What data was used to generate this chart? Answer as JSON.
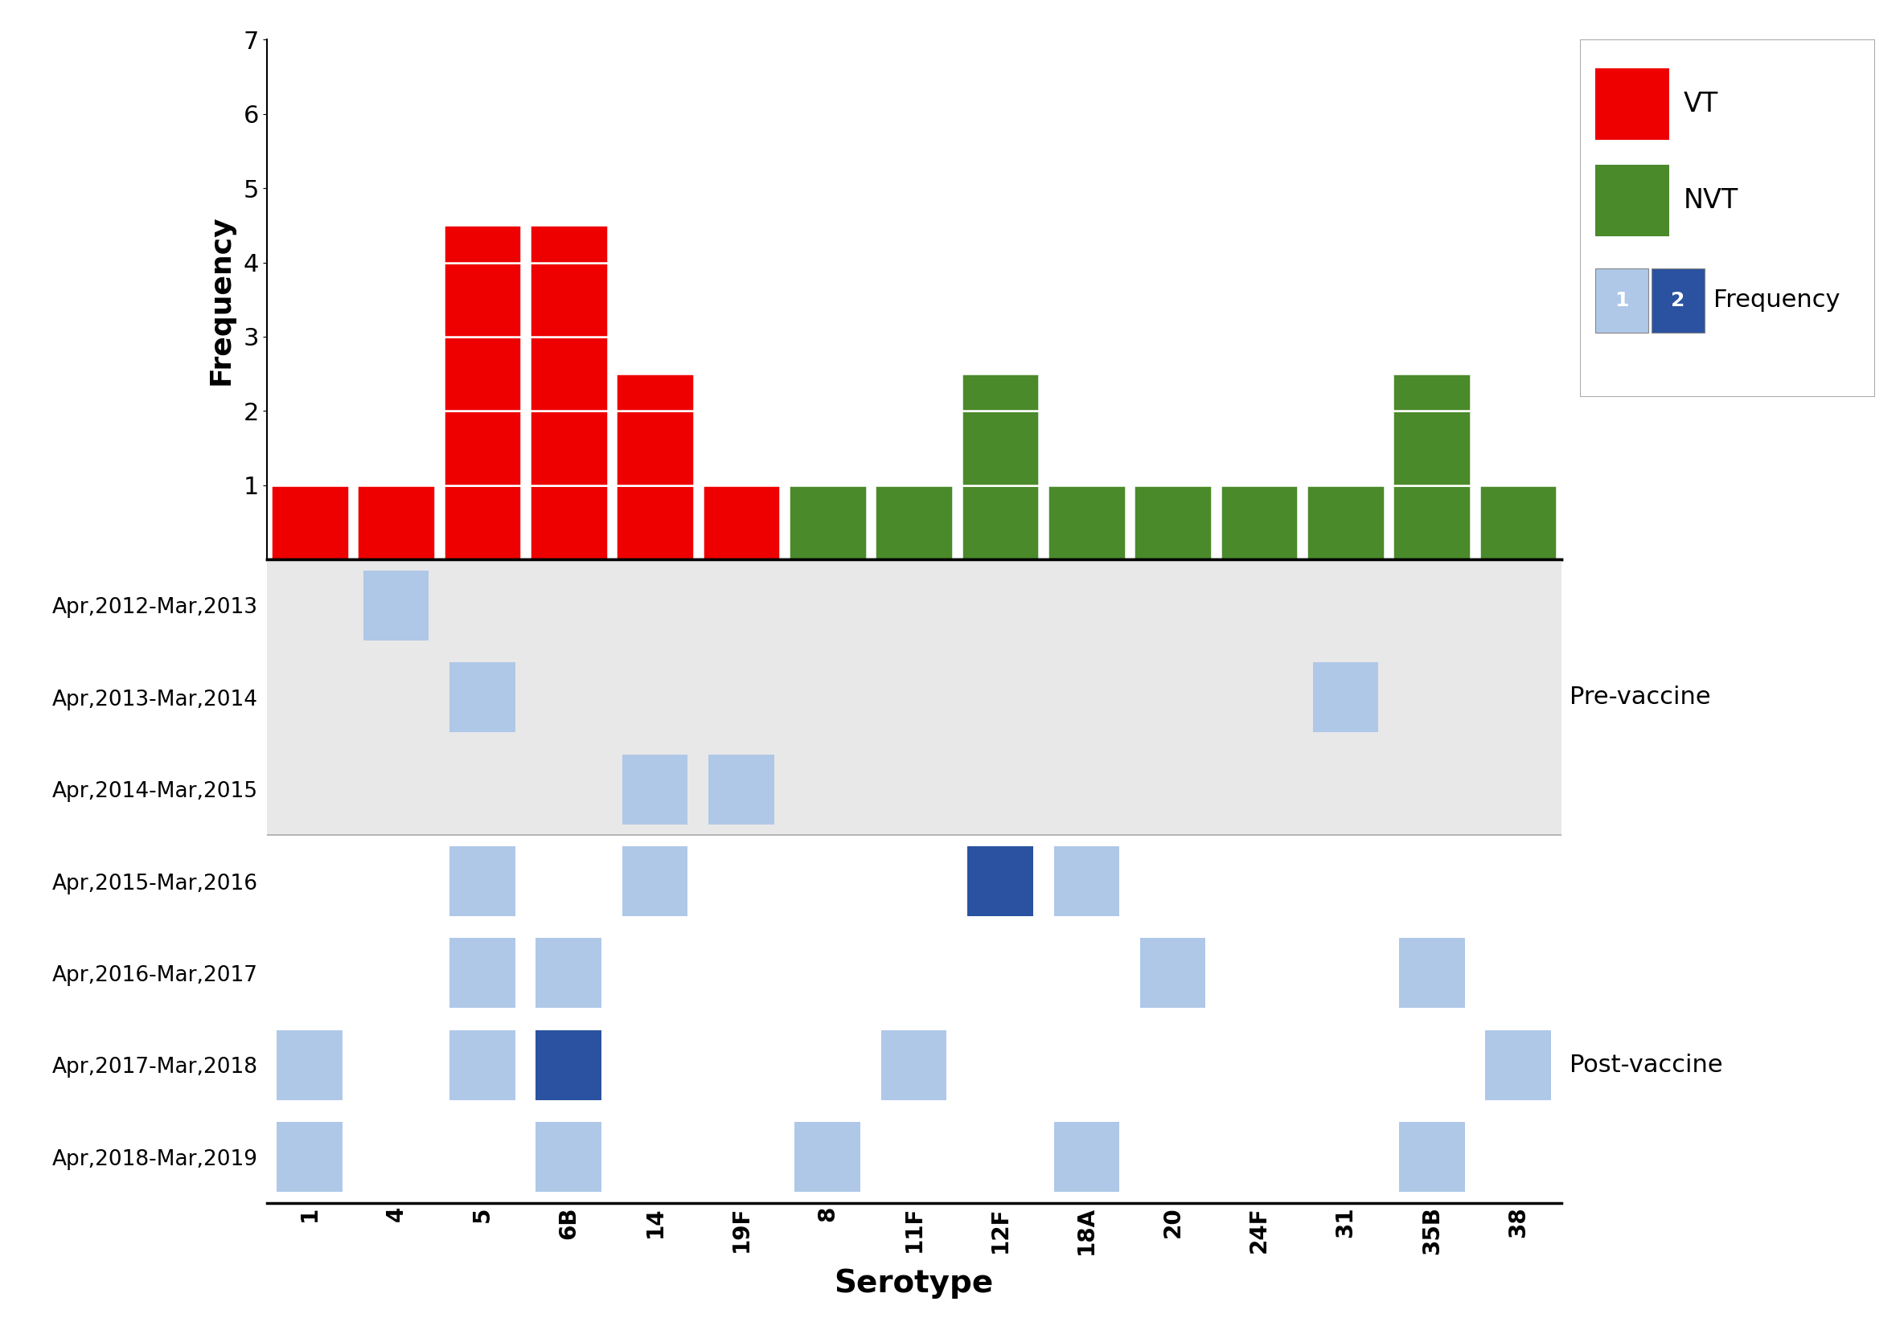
{
  "serotypes": [
    "1",
    "4",
    "5",
    "6B",
    "14",
    "19F",
    "8",
    "11F",
    "12F",
    "18A",
    "20",
    "24F",
    "31",
    "35B",
    "38"
  ],
  "serotype_types": [
    "VT",
    "VT",
    "VT",
    "VT",
    "VT",
    "VT",
    "NVT",
    "NVT",
    "NVT",
    "NVT",
    "NVT",
    "NVT",
    "NVT",
    "NVT",
    "NVT"
  ],
  "bar_heights": [
    1,
    1,
    4.5,
    4.5,
    2.5,
    1,
    1,
    1,
    2.5,
    1,
    1,
    1,
    1,
    2.5,
    1
  ],
  "vt_color": "#EE0000",
  "nvt_color": "#4A8A2A",
  "years": [
    "Apr,2012-Mar,2013",
    "Apr,2013-Mar,2014",
    "Apr,2014-Mar,2015",
    "Apr,2015-Mar,2016",
    "Apr,2016-Mar,2017",
    "Apr,2017-Mar,2018",
    "Apr,2018-Mar,2019"
  ],
  "heatmap_values": [
    [
      0,
      1,
      0,
      0,
      0,
      0,
      0,
      0,
      0,
      0,
      0,
      0,
      0,
      0,
      0
    ],
    [
      0,
      0,
      1,
      0,
      0,
      0,
      0,
      0,
      0,
      0,
      0,
      0,
      1,
      0,
      0
    ],
    [
      0,
      0,
      0,
      0,
      1,
      1,
      0,
      0,
      0,
      0,
      0,
      0,
      0,
      0,
      0
    ],
    [
      0,
      0,
      1,
      0,
      1,
      0,
      0,
      0,
      2,
      1,
      0,
      0,
      0,
      0,
      0
    ],
    [
      0,
      0,
      1,
      1,
      0,
      0,
      0,
      0,
      0,
      0,
      1,
      0,
      0,
      1,
      0
    ],
    [
      1,
      0,
      1,
      2,
      0,
      0,
      0,
      1,
      0,
      0,
      0,
      0,
      0,
      0,
      1
    ],
    [
      1,
      0,
      0,
      1,
      0,
      0,
      1,
      0,
      0,
      1,
      0,
      0,
      0,
      1,
      0
    ]
  ],
  "pre_vaccine_rows": [
    0,
    1,
    2
  ],
  "post_vaccine_rows": [
    3,
    4,
    5,
    6
  ],
  "pre_bg": "#E8E8E8",
  "post_bg": "#FFFFFF",
  "light_blue": "#AFC8E8",
  "dark_blue": "#2A52A0",
  "ylabel_bar": "Frequency",
  "xlabel": "Serotype",
  "ylim_bar": [
    0,
    7
  ],
  "yticks_bar": [
    1,
    2,
    3,
    4,
    5,
    6,
    7
  ]
}
